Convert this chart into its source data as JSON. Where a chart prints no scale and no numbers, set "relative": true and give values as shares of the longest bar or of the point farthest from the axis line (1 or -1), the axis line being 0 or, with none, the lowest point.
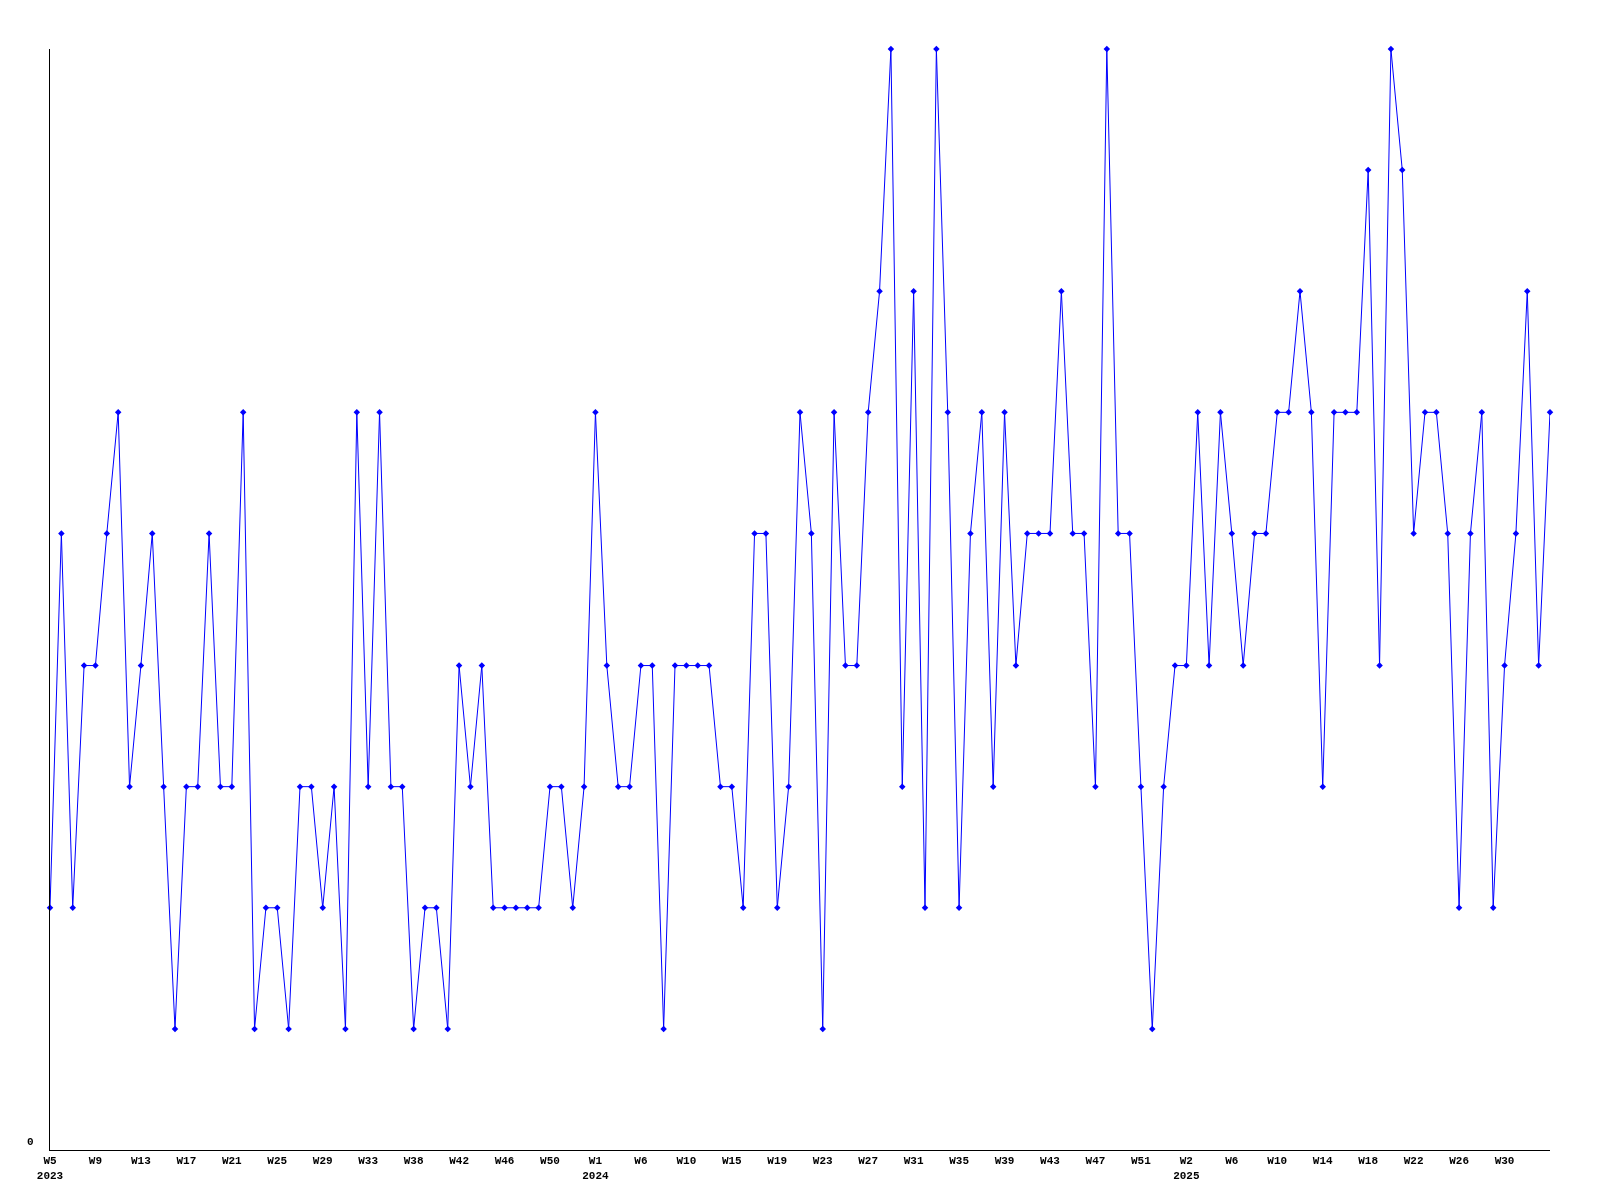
{
  "chart_data": {
    "type": "line",
    "relative": true,
    "marker": "diamond",
    "line_style": "solid",
    "annotations": [
      "0"
    ],
    "categories": [
      "W5\n2023",
      null,
      null,
      null,
      "W9",
      null,
      null,
      null,
      "W13",
      null,
      null,
      null,
      "W17",
      null,
      null,
      null,
      "W21",
      null,
      null,
      null,
      "W25",
      null,
      null,
      null,
      "W29",
      null,
      null,
      null,
      "W33",
      null,
      null,
      null,
      "W38",
      null,
      null,
      null,
      "W42",
      null,
      null,
      null,
      "W46",
      null,
      null,
      null,
      "W50",
      null,
      null,
      null,
      "W1\n2024",
      null,
      null,
      null,
      "W6",
      null,
      null,
      null,
      "W10",
      null,
      null,
      null,
      "W15",
      null,
      null,
      null,
      "W19",
      null,
      null,
      null,
      "W23",
      null,
      null,
      null,
      "W27",
      null,
      null,
      null,
      "W31",
      null,
      null,
      null,
      "W35",
      null,
      null,
      null,
      "W39",
      null,
      null,
      null,
      "W43",
      null,
      null,
      null,
      "W47",
      null,
      null,
      null,
      "W51",
      null,
      null,
      null,
      "W2\n2025",
      null,
      null,
      null,
      "W6",
      null,
      null,
      null,
      "W10",
      null,
      null,
      null,
      "W14",
      null,
      null,
      null,
      "W18",
      null,
      null,
      null,
      "W22",
      null,
      null,
      null,
      "W26",
      null,
      null,
      null,
      "W30",
      null,
      null,
      null,
      null
    ],
    "series": [
      {
        "color": "#0000ff",
        "values": [
          0.22,
          0.56,
          0.22,
          0.44,
          0.44,
          0.56,
          0.67,
          0.33,
          0.44,
          0.56,
          0.33,
          0.11,
          0.33,
          0.33,
          0.56,
          0.33,
          0.33,
          0.67,
          0.11,
          0.22,
          0.22,
          0.11,
          0.33,
          0.33,
          0.22,
          0.33,
          0.11,
          0.67,
          0.33,
          0.67,
          0.33,
          0.33,
          0.11,
          0.22,
          0.22,
          0.11,
          0.44,
          0.33,
          0.44,
          0.22,
          0.22,
          0.22,
          0.22,
          0.22,
          0.33,
          0.33,
          0.22,
          0.33,
          0.67,
          0.44,
          0.33,
          0.33,
          0.44,
          0.44,
          0.11,
          0.44,
          0.44,
          0.44,
          0.44,
          0.33,
          0.33,
          0.22,
          0.56,
          0.56,
          0.22,
          0.33,
          0.67,
          0.56,
          0.11,
          0.67,
          0.44,
          0.44,
          0.67,
          0.78,
          1,
          0.33,
          0.78,
          0.22,
          1,
          0.67,
          0.22,
          0.56,
          0.67,
          0.33,
          0.67,
          0.44,
          0.56,
          0.56,
          0.56,
          0.78,
          0.56,
          0.56,
          0.33,
          1,
          0.56,
          0.56,
          0.33,
          0.11,
          0.33,
          0.44,
          0.44,
          0.67,
          0.44,
          0.67,
          0.56,
          0.44,
          0.56,
          0.56,
          0.67,
          0.67,
          0.78,
          0.67,
          0.33,
          0.67,
          0.67,
          0.67,
          0.89,
          0.44,
          1,
          0.89,
          0.56,
          0.67,
          0.67,
          0.56,
          0.22,
          0.56,
          0.67,
          0.22,
          0.44,
          0.56,
          0.78,
          0.44,
          0.67
        ]
      }
    ]
  }
}
